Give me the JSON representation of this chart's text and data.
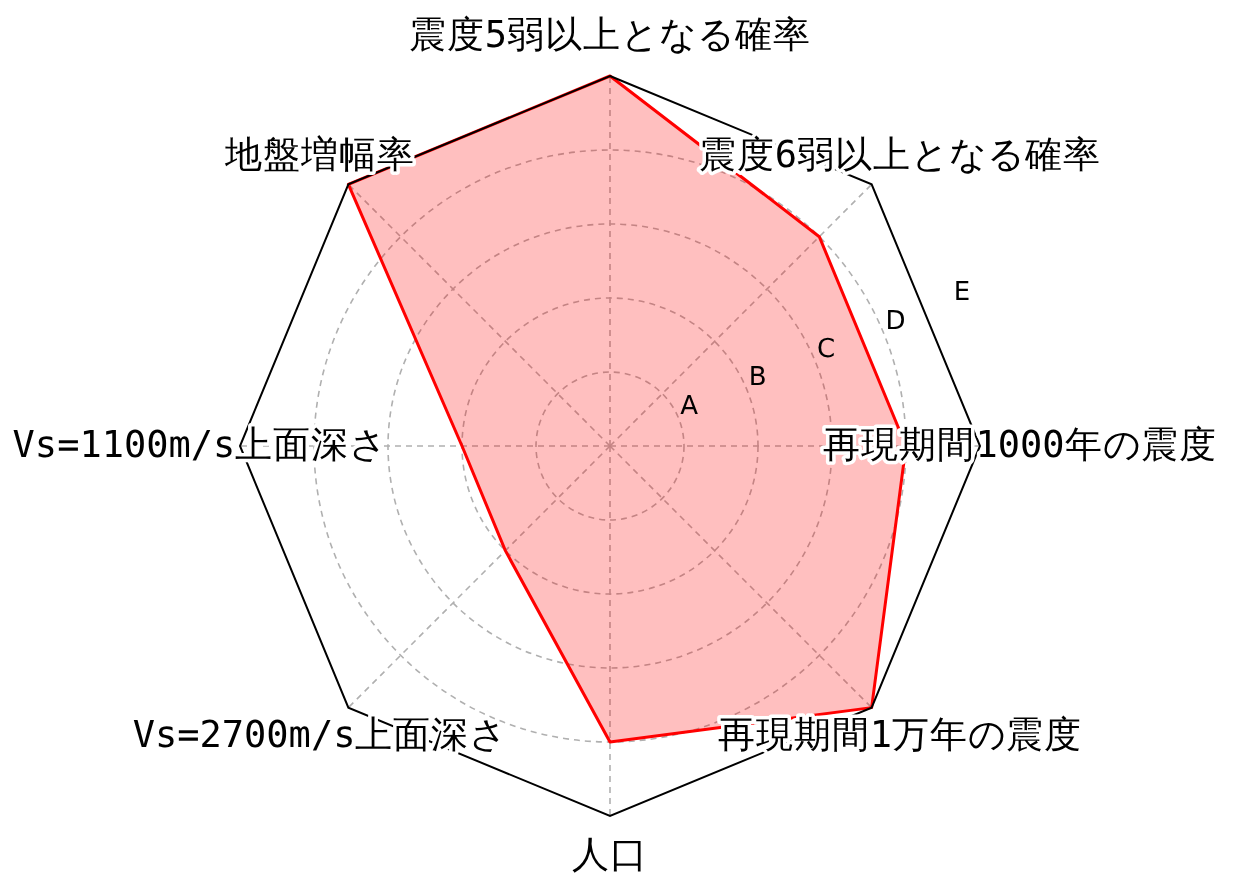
{
  "chart_data": {
    "type": "radar",
    "categories": [
      "震度5弱以上となる確率",
      "震度6弱以上となる確率",
      "再現期間1000年の震度",
      "再現期間1万年の震度",
      "人口",
      "Vs=2700m/s上面深さ",
      "Vs=1100m/s上面深さ",
      "地盤増幅率"
    ],
    "series": [
      {
        "color": "#ff0000",
        "values": [
          5,
          4,
          4,
          5,
          4,
          2,
          2,
          5
        ]
      }
    ],
    "ylim": [
      0,
      5
    ],
    "yticks": [
      {
        "value": 1,
        "label": "A"
      },
      {
        "value": 2,
        "label": "B"
      },
      {
        "value": 3,
        "label": "C"
      },
      {
        "value": 4,
        "label": "D"
      },
      {
        "value": 5,
        "label": "E"
      }
    ],
    "grid": true
  }
}
